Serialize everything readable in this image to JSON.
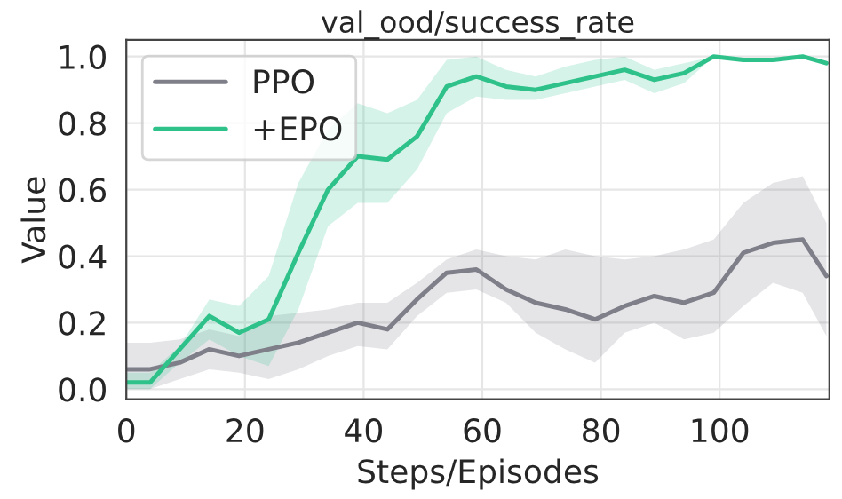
{
  "chart_data": {
    "type": "line",
    "title": "val_ood/success_rate",
    "xlabel": "Steps/Episodes",
    "ylabel": "Value",
    "xlim": [
      0,
      118.5
    ],
    "xticks": [
      0,
      20,
      40,
      60,
      80,
      100
    ],
    "ylim": [
      -0.03,
      1.05
    ],
    "yticks": [
      {
        "value": 0,
        "label": "0.0"
      },
      {
        "value": 0.2,
        "label": "0.2"
      },
      {
        "value": 0.4,
        "label": "0.4"
      },
      {
        "value": 0.6,
        "label": "0.6"
      },
      {
        "value": 0.8,
        "label": "0.8"
      },
      {
        "value": 1.0,
        "label": "1.0"
      }
    ],
    "grid": true,
    "legend": "top left",
    "marker": "none",
    "line_style": "solid",
    "series": [
      {
        "name": "PPO",
        "color": "#7f7f8a",
        "x": [
          0,
          4,
          9,
          14,
          19,
          24,
          29,
          34,
          39,
          44,
          49,
          54,
          59,
          64,
          69,
          74,
          79,
          84,
          89,
          94,
          99,
          104,
          109,
          114,
          118
        ],
        "values": [
          0.06,
          0.06,
          0.08,
          0.12,
          0.1,
          0.12,
          0.14,
          0.17,
          0.2,
          0.18,
          0.27,
          0.35,
          0.36,
          0.3,
          0.26,
          0.24,
          0.21,
          0.25,
          0.28,
          0.26,
          0.29,
          0.41,
          0.44,
          0.45,
          0.34
        ],
        "lower": [
          0.0,
          0.0,
          0.03,
          0.06,
          0.05,
          0.03,
          0.06,
          0.1,
          0.13,
          0.12,
          0.22,
          0.29,
          0.3,
          0.26,
          0.17,
          0.12,
          0.08,
          0.17,
          0.2,
          0.15,
          0.17,
          0.25,
          0.32,
          0.29,
          0.16
        ],
        "upper": [
          0.14,
          0.14,
          0.15,
          0.18,
          0.16,
          0.22,
          0.23,
          0.24,
          0.26,
          0.26,
          0.32,
          0.39,
          0.42,
          0.4,
          0.39,
          0.42,
          0.4,
          0.39,
          0.4,
          0.42,
          0.45,
          0.56,
          0.62,
          0.64,
          0.5
        ]
      },
      {
        "name": "+EPO",
        "color": "#2ec18a",
        "x": [
          0,
          4,
          9,
          14,
          19,
          24,
          29,
          34,
          39,
          44,
          49,
          54,
          59,
          64,
          69,
          74,
          79,
          84,
          89,
          94,
          99,
          104,
          109,
          114,
          118
        ],
        "values": [
          0.02,
          0.02,
          0.12,
          0.22,
          0.17,
          0.21,
          0.41,
          0.6,
          0.7,
          0.69,
          0.76,
          0.91,
          0.94,
          0.91,
          0.9,
          0.92,
          0.94,
          0.96,
          0.93,
          0.95,
          1.0,
          0.99,
          0.99,
          1.0,
          0.98
        ],
        "lower": [
          0.0,
          0.0,
          0.08,
          0.15,
          0.1,
          0.07,
          0.24,
          0.49,
          0.56,
          0.56,
          0.66,
          0.83,
          0.88,
          0.87,
          0.87,
          0.89,
          0.91,
          0.93,
          0.89,
          0.92,
          1.0,
          0.99,
          0.99,
          1.0,
          0.98
        ],
        "upper": [
          0.05,
          0.05,
          0.13,
          0.27,
          0.25,
          0.34,
          0.62,
          0.78,
          0.86,
          0.83,
          0.87,
          0.99,
          1.0,
          0.96,
          0.94,
          0.97,
          0.99,
          1.0,
          0.96,
          0.98,
          1.0,
          0.99,
          0.99,
          1.0,
          0.98
        ]
      }
    ]
  }
}
